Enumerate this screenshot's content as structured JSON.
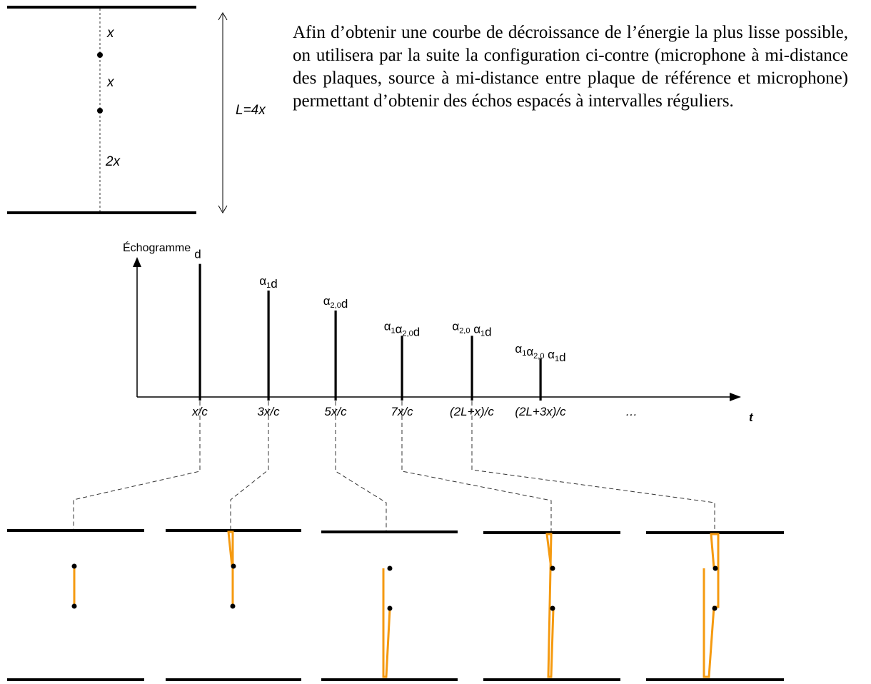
{
  "setup": {
    "segment_labels": [
      "x",
      "x",
      "2x"
    ],
    "length_label": "L=4x"
  },
  "paragraph": "Afin d’obtenir une courbe de décroissance de l’énergie la plus lisse possible, on utilisera par la suite la configuration ci-contre (microphone à mi-distance des plaques, source à mi-distance entre plaque de référence et microphone) permettant d’obtenir des échos espacés à intervalles réguliers.",
  "echogram": {
    "y_axis_label": "Échogramme",
    "x_axis_label": "t",
    "continuation": "…"
  },
  "chart_data": {
    "type": "bar",
    "title": "Échogramme",
    "xlabel": "t",
    "ylabel": "",
    "categories": [
      "x/c",
      "3x/c",
      "5x/c",
      "7x/c",
      "(2L+x)/c",
      "(2L+3x)/c"
    ],
    "values": [
      1.0,
      0.8,
      0.65,
      0.46,
      0.46,
      0.29
    ],
    "bar_labels": [
      "d",
      "α1d",
      "α2,0d",
      "α1α2,0d",
      "α2,0 α1d",
      "α1α2,0 α1d"
    ],
    "ylim": [
      0,
      1.1
    ]
  },
  "colors": {
    "ink": "#000000",
    "path": "#f59a10",
    "dash": "#333333"
  }
}
